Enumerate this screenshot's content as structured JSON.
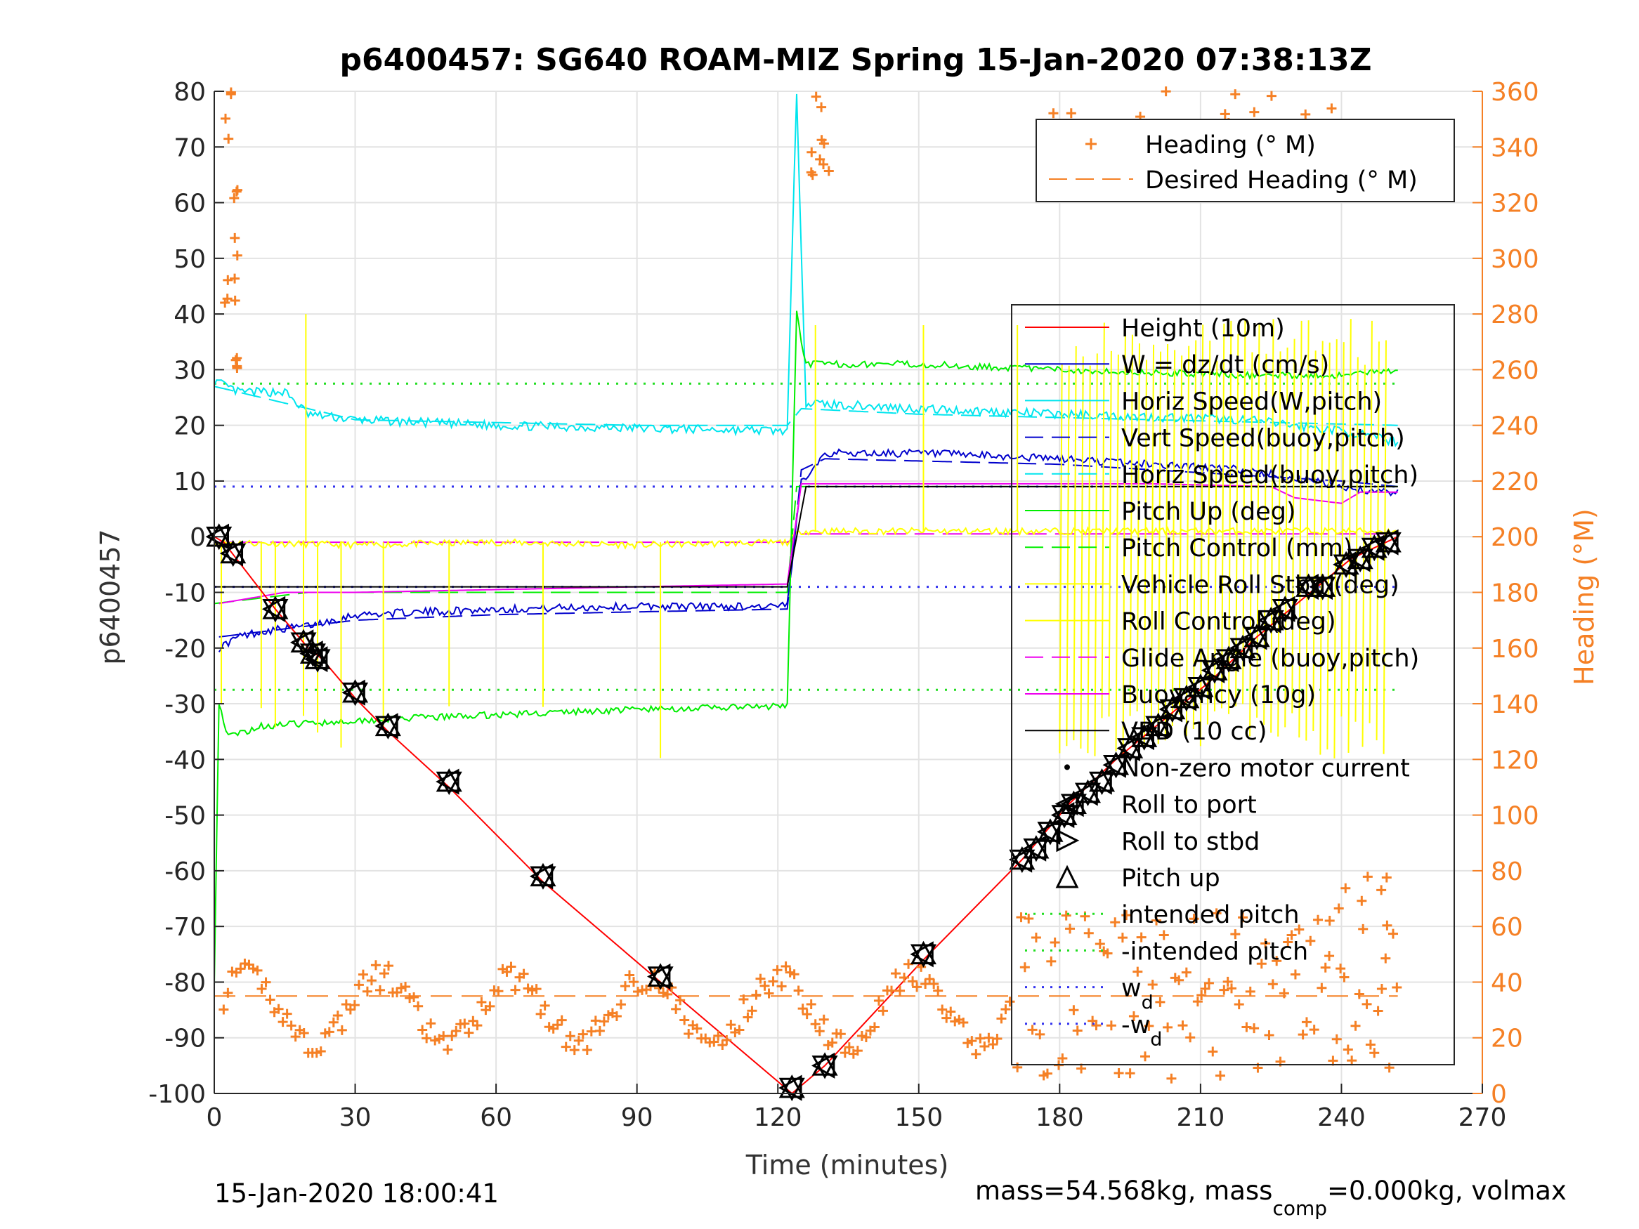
{
  "chart_data": {
    "type": "line",
    "title": "p6400457: SG640 ROAM-MIZ Spring 15-Jan-2020 07:38:13Z",
    "xlabel": "Time (minutes)",
    "ylabel_left": "p6400457",
    "ylabel_right": "Heading (°M)",
    "xlim": [
      0,
      270
    ],
    "ylim_left": [
      -100,
      80
    ],
    "ylim_right": [
      0,
      360
    ],
    "xticks": [
      0,
      30,
      60,
      90,
      120,
      150,
      180,
      210,
      240,
      270
    ],
    "yticks_left": [
      -100,
      -90,
      -80,
      -70,
      -60,
      -50,
      -40,
      -30,
      -20,
      -10,
      0,
      10,
      20,
      30,
      40,
      50,
      60,
      70,
      80
    ],
    "yticks_right": [
      0,
      20,
      40,
      60,
      80,
      100,
      120,
      140,
      160,
      180,
      200,
      220,
      240,
      260,
      280,
      300,
      320,
      340,
      360
    ],
    "grid": true,
    "footer_left": "15-Jan-2020 18:00:41",
    "footer_right_parts": [
      "mass=54.568kg, mass",
      "comp",
      "=0.000kg, volmax"
    ],
    "colors": {
      "height": "#ff0000",
      "w": "#0000cc",
      "horiz_speed": "#00e5ee",
      "pitch": "#00ee00",
      "roll": "#ffff00",
      "glide": "#ee00ee",
      "buoyancy": "#ee00ee",
      "vbd": "#000000",
      "heading": "#f58025",
      "intended_pitch": "#22dd22",
      "wd": "#3333ee"
    },
    "legend_heading": [
      {
        "label": "Heading (° M)",
        "style": "plus",
        "color": "#f58025"
      },
      {
        "label": "Desired Heading (° M)",
        "style": "dash",
        "color": "#f58025"
      }
    ],
    "legend_main": [
      {
        "label": "Height (10m)",
        "style": "line",
        "color": "#ff0000"
      },
      {
        "label": "W = dz/dt (cm/s)",
        "style": "line",
        "color": "#0000cc"
      },
      {
        "label": "Horiz Speed(W,pitch)",
        "style": "line",
        "color": "#00e5ee"
      },
      {
        "label": "Vert Speed(buoy,pitch)",
        "style": "dash",
        "color": "#0000cc"
      },
      {
        "label": "Horiz Speed(buoy,pitch)",
        "style": "dash",
        "color": "#00e5ee"
      },
      {
        "label": "Pitch Up (deg)",
        "style": "line",
        "color": "#00ee00"
      },
      {
        "label": "Pitch Control (mm)",
        "style": "dash",
        "color": "#00ee00"
      },
      {
        "label": "Vehicle Roll Stbd (deg)",
        "style": "line",
        "color": "#ffff00"
      },
      {
        "label": "Roll Control (deg)",
        "style": "line",
        "color": "#ffff00"
      },
      {
        "label": "Glide Angle (buoy,pitch)",
        "style": "dash",
        "color": "#ee00ee"
      },
      {
        "label": "Buoyancy (10g)",
        "style": "line",
        "color": "#ee00ee"
      },
      {
        "label": "VBD (10 cc)",
        "style": "line",
        "color": "#000000"
      },
      {
        "label": "Non-zero motor current",
        "style": "dot",
        "color": "#000000"
      },
      {
        "label": "Roll to port",
        "style": "tri-left",
        "color": "#000000"
      },
      {
        "label": "Roll to stbd",
        "style": "tri-right",
        "color": "#000000"
      },
      {
        "label": "Pitch up",
        "style": "tri-up",
        "color": "#000000"
      },
      {
        "label": "intended pitch",
        "style": "dot-line",
        "color": "#22dd22"
      },
      {
        "label": "-intended pitch",
        "style": "dot-line",
        "color": "#22dd22"
      },
      {
        "label": "w",
        "sub": "d",
        "style": "dot-line",
        "color": "#3333ee"
      },
      {
        "label": "-w",
        "sub": "d",
        "style": "dot-line",
        "color": "#3333ee"
      }
    ],
    "series": {
      "height": [
        [
          0,
          0
        ],
        [
          2,
          -1
        ],
        [
          13,
          -13
        ],
        [
          20,
          -20
        ],
        [
          23,
          -22
        ],
        [
          30,
          -29
        ],
        [
          37,
          -35
        ],
        [
          50,
          -45
        ],
        [
          70,
          -62
        ],
        [
          95,
          -80
        ],
        [
          123,
          -100
        ],
        [
          130,
          -95
        ],
        [
          151,
          -76
        ],
        [
          172,
          -58
        ],
        [
          182,
          -48
        ],
        [
          192,
          -40
        ],
        [
          202,
          -33
        ],
        [
          212,
          -26
        ],
        [
          222,
          -18
        ],
        [
          232,
          -11
        ],
        [
          242,
          -4
        ],
        [
          252,
          0
        ]
      ],
      "w": [
        [
          1,
          -20
        ],
        [
          5,
          -18
        ],
        [
          10,
          -17
        ],
        [
          20,
          -16
        ],
        [
          30,
          -14
        ],
        [
          60,
          -13
        ],
        [
          90,
          -12.5
        ],
        [
          122,
          -12.5
        ],
        [
          125,
          10
        ],
        [
          130,
          15
        ],
        [
          150,
          15
        ],
        [
          180,
          14
        ],
        [
          220,
          12
        ],
        [
          240,
          9
        ],
        [
          248,
          8
        ],
        [
          252,
          8
        ]
      ],
      "vert_speed_buoy": [
        [
          1,
          -18
        ],
        [
          30,
          -15
        ],
        [
          60,
          -14
        ],
        [
          90,
          -13.5
        ],
        [
          122,
          -13
        ],
        [
          125,
          12
        ],
        [
          130,
          14
        ],
        [
          180,
          13
        ],
        [
          240,
          10
        ],
        [
          252,
          9
        ]
      ],
      "horiz_speed": [
        [
          0,
          28
        ],
        [
          5,
          26
        ],
        [
          15,
          26
        ],
        [
          20,
          22
        ],
        [
          30,
          21
        ],
        [
          60,
          20
        ],
        [
          90,
          19.5
        ],
        [
          122,
          19
        ],
        [
          124,
          80
        ],
        [
          126,
          24
        ],
        [
          150,
          23
        ],
        [
          180,
          22
        ],
        [
          220,
          21
        ],
        [
          240,
          19
        ],
        [
          252,
          17
        ]
      ],
      "horiz_speed_buoy": [
        [
          0,
          27
        ],
        [
          30,
          21
        ],
        [
          60,
          20.5
        ],
        [
          90,
          20
        ],
        [
          122,
          20
        ],
        [
          125,
          23
        ],
        [
          150,
          22
        ],
        [
          200,
          21
        ],
        [
          252,
          20
        ]
      ],
      "pitch": [
        [
          0,
          -80
        ],
        [
          1,
          -30
        ],
        [
          3,
          -36
        ],
        [
          10,
          -34
        ],
        [
          30,
          -33
        ],
        [
          60,
          -32
        ],
        [
          90,
          -31
        ],
        [
          122,
          -30.5
        ],
        [
          124,
          40
        ],
        [
          126,
          31
        ],
        [
          150,
          31
        ],
        [
          180,
          30
        ],
        [
          220,
          29
        ],
        [
          240,
          29
        ],
        [
          252,
          30
        ]
      ],
      "pitch_control": [
        [
          0,
          -12
        ],
        [
          20,
          -10
        ],
        [
          122,
          -10
        ],
        [
          124,
          9
        ],
        [
          252,
          9
        ]
      ],
      "roll_stbd": [
        [
          0,
          -1
        ],
        [
          30,
          -1.5
        ],
        [
          60,
          -1
        ],
        [
          90,
          -1.5
        ],
        [
          122,
          -1
        ],
        [
          125,
          1
        ],
        [
          252,
          1
        ]
      ],
      "glide": [
        [
          0,
          -1
        ],
        [
          122,
          -1
        ],
        [
          125,
          0.5
        ],
        [
          252,
          0.5
        ]
      ],
      "buoyancy": [
        [
          1,
          -12
        ],
        [
          8,
          -11
        ],
        [
          15,
          -10
        ],
        [
          30,
          -10
        ],
        [
          60,
          -9.5
        ],
        [
          90,
          -9
        ],
        [
          122,
          -8.5
        ],
        [
          125,
          9.5
        ],
        [
          200,
          9.5
        ],
        [
          225,
          9
        ],
        [
          230,
          7
        ],
        [
          240,
          6
        ],
        [
          244,
          8
        ],
        [
          252,
          8
        ]
      ],
      "vbd": [
        [
          0,
          -9
        ],
        [
          122,
          -9
        ],
        [
          126,
          9
        ],
        [
          252,
          9
        ]
      ],
      "markers": [
        {
          "t": 1,
          "d": 0
        },
        {
          "t": 4,
          "d": -3
        },
        {
          "t": 13,
          "d": -13
        },
        {
          "t": 19,
          "d": -19
        },
        {
          "t": 21,
          "d": -21
        },
        {
          "t": 22,
          "d": -22
        },
        {
          "t": 30,
          "d": -28
        },
        {
          "t": 37,
          "d": -34
        },
        {
          "t": 50,
          "d": -44
        },
        {
          "t": 70,
          "d": -61
        },
        {
          "t": 95,
          "d": -79
        },
        {
          "t": 123,
          "d": -99
        },
        {
          "t": 130,
          "d": -95
        },
        {
          "t": 151,
          "d": -75
        },
        {
          "t": 172,
          "d": -58
        },
        {
          "t": 175,
          "d": -56
        },
        {
          "t": 178,
          "d": -53
        },
        {
          "t": 181,
          "d": -50
        },
        {
          "t": 183,
          "d": -48
        },
        {
          "t": 186,
          "d": -46
        },
        {
          "t": 189,
          "d": -44
        },
        {
          "t": 192,
          "d": -41
        },
        {
          "t": 195,
          "d": -38
        },
        {
          "t": 198,
          "d": -36
        },
        {
          "t": 201,
          "d": -34
        },
        {
          "t": 204,
          "d": -31
        },
        {
          "t": 207,
          "d": -29
        },
        {
          "t": 210,
          "d": -27
        },
        {
          "t": 213,
          "d": -24
        },
        {
          "t": 216,
          "d": -22
        },
        {
          "t": 219,
          "d": -20
        },
        {
          "t": 222,
          "d": -18
        },
        {
          "t": 225,
          "d": -15
        },
        {
          "t": 228,
          "d": -13
        },
        {
          "t": 233,
          "d": -9
        },
        {
          "t": 236,
          "d": -9
        },
        {
          "t": 241,
          "d": -5
        },
        {
          "t": 244,
          "d": -4
        },
        {
          "t": 247,
          "d": -2
        },
        {
          "t": 250,
          "d": -1
        }
      ],
      "desired_heading": 35,
      "intended_pitch": 27.5,
      "wd": 9
    }
  }
}
